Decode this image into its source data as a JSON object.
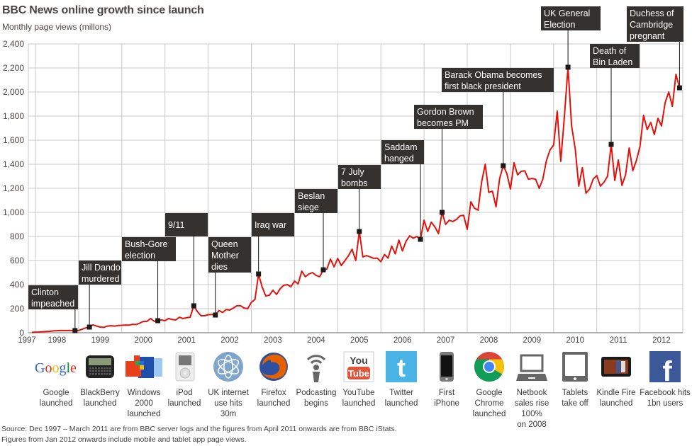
{
  "title": "BBC News online growth since launch",
  "subtitle": "Monthly page views (millons)",
  "source_lines": [
    "Source: Dec 1997 – March 2011 are from BBC server logs and the figures from April 2011 onwards are from BBC iStats.",
    "Figures from Jan 2012 onwards include mobile and tablet app page views."
  ],
  "colors": {
    "line": "#e3120b",
    "annotation_box": "#35312e",
    "annotation_text": "#ffffff",
    "grid": "#c8c8c8"
  },
  "chart_data": {
    "type": "line",
    "title": "BBC News online growth since launch",
    "ylabel": "Monthly page views (millons)",
    "ylim": [
      0,
      2400
    ],
    "yticks": [
      "0",
      "200",
      "400",
      "600",
      "800",
      "1,000",
      "1,200",
      "1,400",
      "1,600",
      "1,800",
      "2,000",
      "2,200",
      "2,400"
    ],
    "xticks": [
      "1997",
      "1998",
      "1999",
      "2000",
      "2001",
      "2002",
      "2003",
      "2004",
      "2005",
      "2006",
      "2007",
      "2008",
      "2009",
      "2010",
      "2011",
      "2012"
    ],
    "grid": true,
    "series": [
      {
        "color": "#e3120b",
        "values_by_year": {
          "1997": {
            "start_month": 12,
            "values": [
              3
            ]
          },
          "1998": {
            "start_month": 1,
            "values": [
              5,
              6,
              8,
              10,
              12,
              15,
              17,
              18,
              18,
              18,
              18,
              18
            ]
          },
          "1999": {
            "start_month": 1,
            "values": [
              18,
              30,
              40,
              47,
              65,
              55,
              47,
              45,
              55,
              58,
              55,
              60
            ]
          },
          "2000": {
            "start_month": 1,
            "values": [
              62,
              64,
              63,
              70,
              68,
              80,
              94,
              94,
              118,
              95,
              100,
              106
            ]
          },
          "2001": {
            "start_month": 1,
            "values": [
              100,
              118,
              110,
              106,
              129,
              118,
              125,
              129,
              224,
              176,
              141,
              141
            ]
          },
          "2002": {
            "start_month": 1,
            "values": [
              150,
              152,
              147,
              185,
              168,
              192,
              188,
              205,
              224,
              224,
              205,
              200
            ]
          },
          "2003": {
            "start_month": 1,
            "values": [
              253,
              276,
              488,
              380,
              306,
              312,
              353,
              318,
              365,
              394,
              400,
              382
            ]
          },
          "2004": {
            "start_month": 1,
            "values": [
              429,
              406,
              512,
              465,
              488,
              500,
              476,
              465,
              523,
              530,
              612,
              547
            ]
          },
          "2005": {
            "start_month": 1,
            "values": [
              617,
              559,
              598,
              640,
              694,
              600,
              841,
              630,
              641,
              630,
              618,
              620
            ]
          },
          "2006": {
            "start_month": 1,
            "values": [
              590,
              650,
              620,
              720,
              655,
              770,
              680,
              760,
              805,
              785,
              800,
              776
            ]
          },
          "2007": {
            "start_month": 1,
            "values": [
              935,
              841,
              918,
              880,
              824,
              1000,
              900,
              935,
              924,
              941,
              971,
              976
            ]
          },
          "2008": {
            "start_month": 1,
            "values": [
              859,
              1088,
              1035,
              1018,
              1253,
              1400,
              1165,
              1176,
              1047,
              1282,
              1388,
              1324
            ]
          },
          "2009": {
            "start_month": 1,
            "values": [
              1194,
              1412,
              1312,
              1341,
              1345,
              1276,
              1282,
              1276,
              1200,
              1276,
              1429,
              1518
            ]
          },
          "2010": {
            "start_month": 1,
            "values": [
              1559,
              1841,
              1424,
              1794,
              2206,
              1718,
              1529,
              1218,
              1371,
              1159,
              1194,
              1276
            ]
          },
          "2011": {
            "start_month": 1,
            "values": [
              1306,
              1218,
              1250,
              1300,
              1565,
              1265,
              1435,
              1224,
              1312,
              1535,
              1347,
              1429
            ]
          },
          "2012": {
            "start_month": 1,
            "values": [
              1547,
              1806,
              1688,
              1747,
              1647,
              1782,
              1718,
              1912,
              2000,
              1882,
              2147,
              2035
            ]
          }
        }
      }
    ],
    "annotations": [
      {
        "date": "1998-12",
        "lines": [
          "Clinton",
          "impeached"
        ]
      },
      {
        "date": "1999-04",
        "lines": [
          "Jill Dando",
          "murdered"
        ]
      },
      {
        "date": "2000-11",
        "lines": [
          "Bush-Gore",
          "election"
        ]
      },
      {
        "date": "2001-09",
        "lines": [
          "9/11"
        ]
      },
      {
        "date": "2002-03",
        "lines": [
          "Queen",
          "Mother",
          "dies"
        ]
      },
      {
        "date": "2003-03",
        "lines": [
          "Iraq war"
        ]
      },
      {
        "date": "2004-09",
        "lines": [
          "Beslan",
          "siege"
        ]
      },
      {
        "date": "2005-07",
        "lines": [
          "7 July",
          "bombs"
        ]
      },
      {
        "date": "2006-12",
        "lines": [
          "Saddam",
          "hanged"
        ]
      },
      {
        "date": "2007-06",
        "lines": [
          "Gordon Brown",
          "becomes PM"
        ]
      },
      {
        "date": "2008-11",
        "lines": [
          "Barack Obama becomes",
          "first black president"
        ]
      },
      {
        "date": "2010-05",
        "lines": [
          "UK General",
          "Election"
        ]
      },
      {
        "date": "2011-05",
        "lines": [
          "Death of",
          "Bin Laden"
        ]
      },
      {
        "date": "2012-12",
        "lines": [
          "Duchess of",
          "Cambridge",
          "pregnant"
        ]
      }
    ]
  },
  "milestones": [
    {
      "icon": "google-logo-icon",
      "lines": [
        "Google",
        "launched"
      ]
    },
    {
      "icon": "blackberry-icon",
      "lines": [
        "BlackBerry",
        "launched"
      ]
    },
    {
      "icon": "windows-logo-icon",
      "lines": [
        "Windows",
        "2000",
        "launched"
      ]
    },
    {
      "icon": "ipod-icon",
      "lines": [
        "iPod",
        "launched"
      ]
    },
    {
      "icon": "globe-icon",
      "lines": [
        "UK internet",
        "use hits",
        "30m"
      ]
    },
    {
      "icon": "firefox-icon",
      "lines": [
        "Firefox",
        "launched"
      ]
    },
    {
      "icon": "podcast-icon",
      "lines": [
        "Podcasting",
        "begins"
      ]
    },
    {
      "icon": "youtube-logo-icon",
      "lines": [
        "YouTube",
        "launched"
      ]
    },
    {
      "icon": "twitter-logo-icon",
      "lines": [
        "Twitter",
        "launched"
      ]
    },
    {
      "icon": "iphone-icon",
      "lines": [
        "First",
        "iPhone"
      ]
    },
    {
      "icon": "chrome-logo-icon",
      "lines": [
        "Google",
        "Chrome",
        "launched"
      ]
    },
    {
      "icon": "netbook-icon",
      "lines": [
        "Netbook",
        "sales rise",
        "100%",
        "on 2008"
      ]
    },
    {
      "icon": "tablet-icon",
      "lines": [
        "Tablets",
        "take off"
      ]
    },
    {
      "icon": "kindle-fire-icon",
      "lines": [
        "Kindle Fire",
        "launched"
      ]
    },
    {
      "icon": "facebook-logo-icon",
      "lines": [
        "Facebook hits",
        "1bn users"
      ]
    }
  ],
  "logo_texts": {
    "google": "Google",
    "youtube_top": "You",
    "youtube_bottom": "Tube",
    "facebook": "f",
    "twitter": "t"
  }
}
